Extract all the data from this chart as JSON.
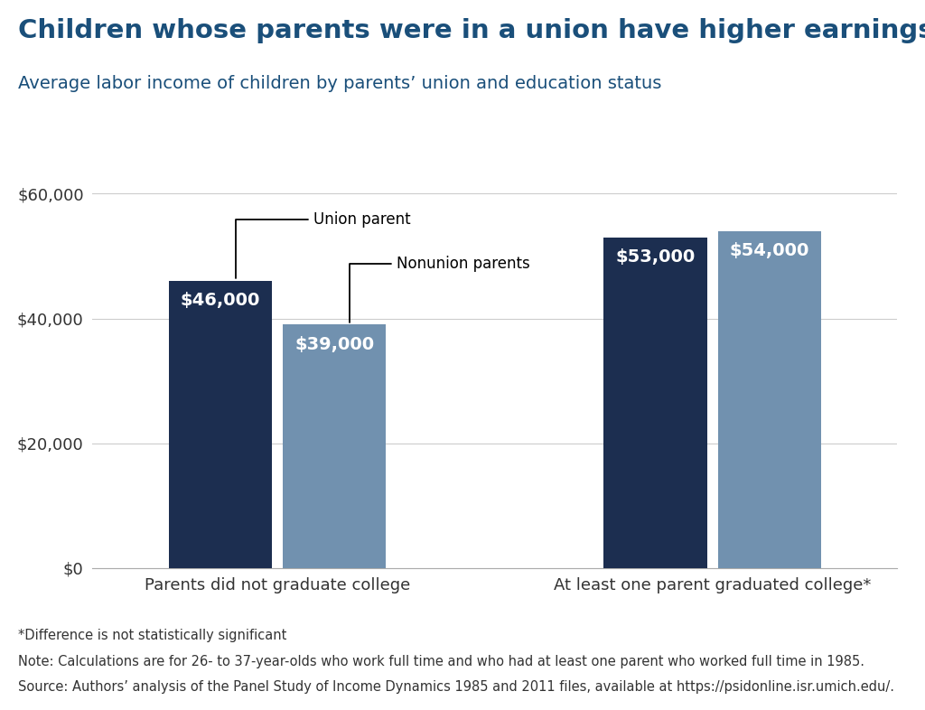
{
  "title": "Children whose parents were in a union have higher earnings",
  "subtitle": "Average labor income of children by parents’ union and education status",
  "title_color": "#1a4f7a",
  "subtitle_color": "#1a4f7a",
  "title_fontsize": 21,
  "subtitle_fontsize": 14,
  "groups": [
    "Parents did not graduate college",
    "At least one parent graduated college*"
  ],
  "union_values": [
    46000,
    53000
  ],
  "nonunion_values": [
    39000,
    54000
  ],
  "union_color": "#1c2e50",
  "nonunion_color": "#7191af",
  "bar_width": 0.38,
  "bar_gap": 0.04,
  "group_centers": [
    1.0,
    2.6
  ],
  "ylim": [
    0,
    66000
  ],
  "yticks": [
    0,
    20000,
    40000,
    60000
  ],
  "ytick_labels": [
    "$0",
    "$20,000",
    "$40,000",
    "$60,000"
  ],
  "footnote1": "*Difference is not statistically significant",
  "footnote2": "Note: Calculations are for 26- to 37-year-olds who work full time and who had at least one parent who worked full time in 1985.",
  "footnote3": "Source: Authors’ analysis of the Panel Study of Income Dynamics 1985 and 2011 files, available at https://psidonline.isr.umich.edu/.",
  "annotation_union": "Union parent",
  "annotation_nonunion": "Nonunion parents",
  "bg_color": "#ffffff",
  "grid_color": "#cccccc",
  "axis_label_fontsize": 13,
  "value_fontsize": 14,
  "footnote_fontsize": 10.5
}
